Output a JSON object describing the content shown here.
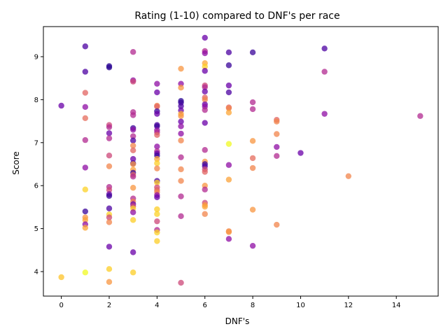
{
  "chart_data": {
    "type": "scatter",
    "title": "Rating (1-10) compared to DNF's per race",
    "xlabel": "DNF's",
    "ylabel": "Score",
    "xlim": [
      -0.75,
      15.75
    ],
    "ylim": [
      3.43,
      9.7
    ],
    "xticks": [
      0,
      2,
      4,
      6,
      8,
      10,
      12,
      14
    ],
    "yticks": [
      4,
      5,
      6,
      7,
      8,
      9
    ],
    "grid": false,
    "colormap": "plasma",
    "alpha": 0.75,
    "points": [
      {
        "x": 0,
        "y": 7.86,
        "c": "#6a00a8"
      },
      {
        "x": 0,
        "y": 3.87,
        "c": "#fdc328"
      },
      {
        "x": 1,
        "y": 9.24,
        "c": "#4c02a1"
      },
      {
        "x": 1,
        "y": 8.65,
        "c": "#4c02a1"
      },
      {
        "x": 1,
        "y": 8.16,
        "c": "#e16462"
      },
      {
        "x": 1,
        "y": 7.83,
        "c": "#8f0da4"
      },
      {
        "x": 1,
        "y": 7.57,
        "c": "#e66c5c"
      },
      {
        "x": 1,
        "y": 7.06,
        "c": "#b12a90"
      },
      {
        "x": 1,
        "y": 6.42,
        "c": "#8f0da4"
      },
      {
        "x": 1,
        "y": 5.91,
        "c": "#fcd225"
      },
      {
        "x": 1,
        "y": 5.4,
        "c": "#3a049a"
      },
      {
        "x": 1,
        "y": 5.26,
        "c": "#f89540"
      },
      {
        "x": 1,
        "y": 5.2,
        "c": "#fba238"
      },
      {
        "x": 1,
        "y": 5.1,
        "c": "#8f0da4"
      },
      {
        "x": 1,
        "y": 5.02,
        "c": "#fca636"
      },
      {
        "x": 1,
        "y": 3.98,
        "c": "#f0f921"
      },
      {
        "x": 2,
        "y": 8.78,
        "c": "#2a0593"
      },
      {
        "x": 2,
        "y": 8.75,
        "c": "#2a0593"
      },
      {
        "x": 2,
        "y": 7.41,
        "c": "#cc4778"
      },
      {
        "x": 2,
        "y": 7.36,
        "c": "#b12a90"
      },
      {
        "x": 2,
        "y": 7.22,
        "c": "#6a00a8"
      },
      {
        "x": 2,
        "y": 7.1,
        "c": "#b12a90"
      },
      {
        "x": 2,
        "y": 6.7,
        "c": "#cc4778"
      },
      {
        "x": 2,
        "y": 6.45,
        "c": "#f2844b"
      },
      {
        "x": 2,
        "y": 5.97,
        "c": "#b12a90"
      },
      {
        "x": 2,
        "y": 5.9,
        "c": "#cc4778"
      },
      {
        "x": 2,
        "y": 5.8,
        "c": "#6a00a8"
      },
      {
        "x": 2,
        "y": 5.76,
        "c": "#3a049a"
      },
      {
        "x": 2,
        "y": 5.47,
        "c": "#4c02a1"
      },
      {
        "x": 2,
        "y": 5.33,
        "c": "#fcd225"
      },
      {
        "x": 2,
        "y": 5.26,
        "c": "#cc4778"
      },
      {
        "x": 2,
        "y": 5.15,
        "c": "#f2844b"
      },
      {
        "x": 2,
        "y": 4.58,
        "c": "#6a00a8"
      },
      {
        "x": 2,
        "y": 4.06,
        "c": "#fcce25"
      },
      {
        "x": 2,
        "y": 3.76,
        "c": "#f89540"
      },
      {
        "x": 3,
        "y": 9.11,
        "c": "#b12a90"
      },
      {
        "x": 3,
        "y": 8.45,
        "c": "#8f0da4"
      },
      {
        "x": 3,
        "y": 8.42,
        "c": "#cc4778"
      },
      {
        "x": 3,
        "y": 7.71,
        "c": "#b12a90"
      },
      {
        "x": 3,
        "y": 7.64,
        "c": "#b12a90"
      },
      {
        "x": 3,
        "y": 7.34,
        "c": "#3a049a"
      },
      {
        "x": 3,
        "y": 7.3,
        "c": "#8f0da4"
      },
      {
        "x": 3,
        "y": 7.15,
        "c": "#b12a90"
      },
      {
        "x": 3,
        "y": 7.05,
        "c": "#4c02a1"
      },
      {
        "x": 3,
        "y": 6.93,
        "c": "#f2844b"
      },
      {
        "x": 3,
        "y": 6.82,
        "c": "#e16462"
      },
      {
        "x": 3,
        "y": 6.62,
        "c": "#6a00a8"
      },
      {
        "x": 3,
        "y": 6.52,
        "c": "#3a049a"
      },
      {
        "x": 3,
        "y": 6.5,
        "c": "#f89540"
      },
      {
        "x": 3,
        "y": 6.37,
        "c": "#fba238"
      },
      {
        "x": 3,
        "y": 6.3,
        "c": "#3a049a"
      },
      {
        "x": 3,
        "y": 6.25,
        "c": "#e16462"
      },
      {
        "x": 3,
        "y": 6.21,
        "c": "#b12a90"
      },
      {
        "x": 3,
        "y": 5.95,
        "c": "#f89540"
      },
      {
        "x": 3,
        "y": 5.7,
        "c": "#b12a90"
      },
      {
        "x": 3,
        "y": 5.63,
        "c": "#f2844b"
      },
      {
        "x": 3,
        "y": 5.57,
        "c": "#6a00a8"
      },
      {
        "x": 3,
        "y": 5.52,
        "c": "#cc4778"
      },
      {
        "x": 3,
        "y": 5.47,
        "c": "#fcd225"
      },
      {
        "x": 3,
        "y": 5.38,
        "c": "#8f0da4"
      },
      {
        "x": 3,
        "y": 5.2,
        "c": "#fcce25"
      },
      {
        "x": 3,
        "y": 4.45,
        "c": "#6a00a8"
      },
      {
        "x": 3,
        "y": 3.98,
        "c": "#fcce25"
      },
      {
        "x": 4,
        "y": 8.37,
        "c": "#8f0da4"
      },
      {
        "x": 4,
        "y": 8.17,
        "c": "#6a00a8"
      },
      {
        "x": 4,
        "y": 7.86,
        "c": "#f2844b"
      },
      {
        "x": 4,
        "y": 7.84,
        "c": "#e16462"
      },
      {
        "x": 4,
        "y": 7.73,
        "c": "#3a049a"
      },
      {
        "x": 4,
        "y": 7.67,
        "c": "#6a00a8"
      },
      {
        "x": 4,
        "y": 7.41,
        "c": "#4c02a1"
      },
      {
        "x": 4,
        "y": 7.38,
        "c": "#3a049a"
      },
      {
        "x": 4,
        "y": 7.29,
        "c": "#8f0da4"
      },
      {
        "x": 4,
        "y": 7.24,
        "c": "#b12a90"
      },
      {
        "x": 4,
        "y": 7.18,
        "c": "#e16462"
      },
      {
        "x": 4,
        "y": 6.91,
        "c": "#8f0da4"
      },
      {
        "x": 4,
        "y": 6.8,
        "c": "#b12a90"
      },
      {
        "x": 4,
        "y": 6.75,
        "c": "#6a00a8"
      },
      {
        "x": 4,
        "y": 6.7,
        "c": "#3a049a"
      },
      {
        "x": 4,
        "y": 6.62,
        "c": "#fca636"
      },
      {
        "x": 4,
        "y": 6.52,
        "c": "#fcce25"
      },
      {
        "x": 4,
        "y": 6.4,
        "c": "#f2844b"
      },
      {
        "x": 4,
        "y": 6.11,
        "c": "#4c02a1"
      },
      {
        "x": 4,
        "y": 6.07,
        "c": "#fcce25"
      },
      {
        "x": 4,
        "y": 5.96,
        "c": "#cc4778"
      },
      {
        "x": 4,
        "y": 5.9,
        "c": "#e16462"
      },
      {
        "x": 4,
        "y": 5.85,
        "c": "#f2844b"
      },
      {
        "x": 4,
        "y": 5.78,
        "c": "#8f0da4"
      },
      {
        "x": 4,
        "y": 5.73,
        "c": "#6a00a8"
      },
      {
        "x": 4,
        "y": 5.45,
        "c": "#fcce25"
      },
      {
        "x": 4,
        "y": 5.34,
        "c": "#fcd225"
      },
      {
        "x": 4,
        "y": 5.17,
        "c": "#cc4778"
      },
      {
        "x": 4,
        "y": 4.97,
        "c": "#b12a90"
      },
      {
        "x": 4,
        "y": 4.91,
        "c": "#fcd225"
      },
      {
        "x": 4,
        "y": 4.71,
        "c": "#fcce25"
      },
      {
        "x": 5,
        "y": 8.72,
        "c": "#f89540"
      },
      {
        "x": 5,
        "y": 8.37,
        "c": "#8f0da4"
      },
      {
        "x": 5,
        "y": 8.28,
        "c": "#f89540"
      },
      {
        "x": 5,
        "y": 7.97,
        "c": "#2a0593"
      },
      {
        "x": 5,
        "y": 7.93,
        "c": "#3a049a"
      },
      {
        "x": 5,
        "y": 7.85,
        "c": "#4c02a1"
      },
      {
        "x": 5,
        "y": 7.75,
        "c": "#6a00a8"
      },
      {
        "x": 5,
        "y": 7.67,
        "c": "#fca636"
      },
      {
        "x": 5,
        "y": 7.62,
        "c": "#f89540"
      },
      {
        "x": 5,
        "y": 7.49,
        "c": "#6a00a8"
      },
      {
        "x": 5,
        "y": 7.38,
        "c": "#8f0da4"
      },
      {
        "x": 5,
        "y": 7.21,
        "c": "#8f0da4"
      },
      {
        "x": 5,
        "y": 7.05,
        "c": "#f2844b"
      },
      {
        "x": 5,
        "y": 6.66,
        "c": "#b12a90"
      },
      {
        "x": 5,
        "y": 6.38,
        "c": "#f2844b"
      },
      {
        "x": 5,
        "y": 6.11,
        "c": "#f2844b"
      },
      {
        "x": 5,
        "y": 5.75,
        "c": "#b12a90"
      },
      {
        "x": 5,
        "y": 5.29,
        "c": "#b12a90"
      },
      {
        "x": 5,
        "y": 3.74,
        "c": "#cc4778"
      },
      {
        "x": 6,
        "y": 9.44,
        "c": "#6a00a8"
      },
      {
        "x": 6,
        "y": 9.13,
        "c": "#b12a90"
      },
      {
        "x": 6,
        "y": 9.08,
        "c": "#8f0da4"
      },
      {
        "x": 6,
        "y": 8.85,
        "c": "#fca636"
      },
      {
        "x": 6,
        "y": 8.77,
        "c": "#fcce25"
      },
      {
        "x": 6,
        "y": 8.67,
        "c": "#6a00a8"
      },
      {
        "x": 6,
        "y": 8.33,
        "c": "#cc4778"
      },
      {
        "x": 6,
        "y": 8.29,
        "c": "#b12a90"
      },
      {
        "x": 6,
        "y": 8.19,
        "c": "#6a00a8"
      },
      {
        "x": 6,
        "y": 8.05,
        "c": "#e16462"
      },
      {
        "x": 6,
        "y": 8.0,
        "c": "#f2844b"
      },
      {
        "x": 6,
        "y": 7.89,
        "c": "#6a00a8"
      },
      {
        "x": 6,
        "y": 7.84,
        "c": "#8f0da4"
      },
      {
        "x": 6,
        "y": 7.76,
        "c": "#b12a90"
      },
      {
        "x": 6,
        "y": 7.46,
        "c": "#6a00a8"
      },
      {
        "x": 6,
        "y": 6.83,
        "c": "#b12a90"
      },
      {
        "x": 6,
        "y": 6.56,
        "c": "#f89540"
      },
      {
        "x": 6,
        "y": 6.5,
        "c": "#3a049a"
      },
      {
        "x": 6,
        "y": 6.45,
        "c": "#4c02a1"
      },
      {
        "x": 6,
        "y": 6.38,
        "c": "#cc4778"
      },
      {
        "x": 6,
        "y": 6.32,
        "c": "#e16462"
      },
      {
        "x": 6,
        "y": 6.0,
        "c": "#f89540"
      },
      {
        "x": 6,
        "y": 5.91,
        "c": "#b12a90"
      },
      {
        "x": 6,
        "y": 5.6,
        "c": "#cc4778"
      },
      {
        "x": 6,
        "y": 5.55,
        "c": "#f89540"
      },
      {
        "x": 6,
        "y": 5.51,
        "c": "#fca636"
      },
      {
        "x": 6,
        "y": 5.34,
        "c": "#f2844b"
      },
      {
        "x": 7,
        "y": 9.1,
        "c": "#4c02a1"
      },
      {
        "x": 7,
        "y": 8.8,
        "c": "#3a049a"
      },
      {
        "x": 7,
        "y": 8.33,
        "c": "#6a00a8"
      },
      {
        "x": 7,
        "y": 8.17,
        "c": "#4c02a1"
      },
      {
        "x": 7,
        "y": 7.82,
        "c": "#e16462"
      },
      {
        "x": 7,
        "y": 7.8,
        "c": "#f2844b"
      },
      {
        "x": 7,
        "y": 7.7,
        "c": "#fca636"
      },
      {
        "x": 7,
        "y": 6.97,
        "c": "#f0f921"
      },
      {
        "x": 7,
        "y": 6.48,
        "c": "#8f0da4"
      },
      {
        "x": 7,
        "y": 6.14,
        "c": "#fba238"
      },
      {
        "x": 7,
        "y": 4.94,
        "c": "#f2844b"
      },
      {
        "x": 7,
        "y": 4.92,
        "c": "#f89540"
      },
      {
        "x": 7,
        "y": 4.76,
        "c": "#8f0da4"
      },
      {
        "x": 8,
        "y": 9.1,
        "c": "#3a049a"
      },
      {
        "x": 8,
        "y": 7.94,
        "c": "#b12a90"
      },
      {
        "x": 8,
        "y": 7.78,
        "c": "#b12a90"
      },
      {
        "x": 8,
        "y": 7.04,
        "c": "#f89540"
      },
      {
        "x": 8,
        "y": 6.64,
        "c": "#e66c5c"
      },
      {
        "x": 8,
        "y": 6.41,
        "c": "#f2844b"
      },
      {
        "x": 8,
        "y": 5.44,
        "c": "#f89540"
      },
      {
        "x": 8,
        "y": 4.6,
        "c": "#8f0da4"
      },
      {
        "x": 9,
        "y": 7.53,
        "c": "#e16462"
      },
      {
        "x": 9,
        "y": 7.49,
        "c": "#f2844b"
      },
      {
        "x": 9,
        "y": 7.2,
        "c": "#f2844b"
      },
      {
        "x": 9,
        "y": 6.9,
        "c": "#8f0da4"
      },
      {
        "x": 9,
        "y": 6.69,
        "c": "#b12a90"
      },
      {
        "x": 9,
        "y": 5.09,
        "c": "#f2844b"
      },
      {
        "x": 10,
        "y": 6.76,
        "c": "#6a00a8"
      },
      {
        "x": 11,
        "y": 9.19,
        "c": "#4c02a1"
      },
      {
        "x": 11,
        "y": 8.65,
        "c": "#b12a90"
      },
      {
        "x": 11,
        "y": 7.67,
        "c": "#8f0da4"
      },
      {
        "x": 12,
        "y": 6.22,
        "c": "#f2844b"
      },
      {
        "x": 15,
        "y": 7.62,
        "c": "#b12a90"
      }
    ]
  }
}
